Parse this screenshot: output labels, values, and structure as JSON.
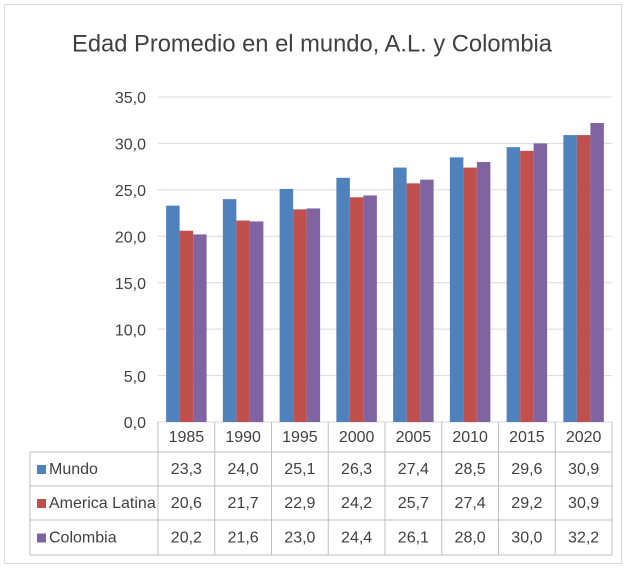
{
  "chart_data": {
    "type": "bar",
    "title": "Edad Promedio en el mundo, A.L. y Colombia",
    "categories": [
      "1985",
      "1990",
      "1995",
      "2000",
      "2005",
      "2010",
      "2015",
      "2020"
    ],
    "series": [
      {
        "name": "Mundo",
        "color": "#4f81bd",
        "values": [
          23.3,
          24.0,
          25.1,
          26.3,
          27.4,
          28.5,
          29.6,
          30.9
        ],
        "value_labels": [
          "23,3",
          "24,0",
          "25,1",
          "26,3",
          "27,4",
          "28,5",
          "29,6",
          "30,9"
        ]
      },
      {
        "name": "America Latina",
        "color": "#c0504d",
        "values": [
          20.6,
          21.7,
          22.9,
          24.2,
          25.7,
          27.4,
          29.2,
          30.9
        ],
        "value_labels": [
          "20,6",
          "21,7",
          "22,9",
          "24,2",
          "25,7",
          "27,4",
          "29,2",
          "30,9"
        ]
      },
      {
        "name": "Colombia",
        "color": "#8064a2",
        "values": [
          20.2,
          21.6,
          23.0,
          24.4,
          26.1,
          28.0,
          30.0,
          32.2
        ],
        "value_labels": [
          "20,2",
          "21,6",
          "23,0",
          "24,4",
          "26,1",
          "28,0",
          "30,0",
          "32,2"
        ]
      }
    ],
    "ylim": [
      0,
      35
    ],
    "yticks": [
      {
        "value": 0,
        "label": "0,0"
      },
      {
        "value": 5,
        "label": "5,0"
      },
      {
        "value": 10,
        "label": "10,0"
      },
      {
        "value": 15,
        "label": "15,0"
      },
      {
        "value": 20,
        "label": "20,0"
      },
      {
        "value": 25,
        "label": "25,0"
      },
      {
        "value": 30,
        "label": "30,0"
      },
      {
        "value": 35,
        "label": "35,0"
      }
    ],
    "grid": true,
    "data_table": true
  }
}
